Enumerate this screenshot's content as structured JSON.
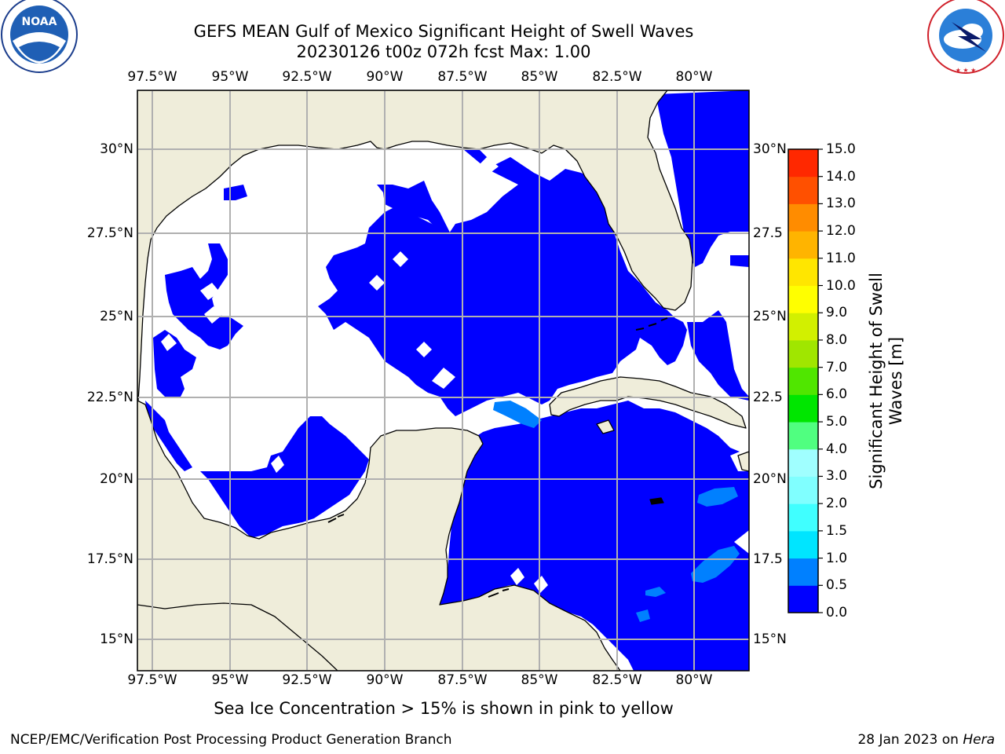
{
  "title_line1": "GEFS MEAN Gulf of Mexico Significant Height of Swell Waves",
  "title_line2": "20230126 t00z 072h fcst   Max: 1.00",
  "lon_labels": [
    "97.5°W",
    "95°W",
    "92.5°W",
    "90°W",
    "87.5°W",
    "85°W",
    "82.5°W",
    "80°W"
  ],
  "lat_labels": [
    "30°N",
    "27.5°N",
    "25°N",
    "22.5°N",
    "20°N",
    "17.5°N",
    "15°N"
  ],
  "lat_labels_right": [
    "30°N",
    "27.5",
    "25°N",
    "22.5",
    "20°N",
    "17.5",
    "15°N"
  ],
  "colorbar": {
    "title_line1": "Significant Height of Swell",
    "title_line2": "Waves [m]",
    "ticks": [
      "0.0",
      "0.5",
      "1.0",
      "1.5",
      "2.0",
      "3.0",
      "4.0",
      "5.0",
      "6.0",
      "7.0",
      "8.0",
      "9.0",
      "10.0",
      "11.0",
      "12.0",
      "13.0",
      "14.0",
      "15.0"
    ],
    "colors": [
      "#0000ff",
      "#0080ff",
      "#00e5ff",
      "#40ffff",
      "#80ffff",
      "#a0ffff",
      "#50ff80",
      "#00e600",
      "#50e600",
      "#a0e600",
      "#d2f000",
      "#ffff00",
      "#ffe600",
      "#ffb400",
      "#ff8c00",
      "#ff5000",
      "#ff2800",
      "#ff0000"
    ]
  },
  "map_colors": {
    "land": "#efedda",
    "ocean_low": "#ffffff",
    "swell_0_0_5": "#0000ff",
    "swell_0_5_1": "#0080ff"
  },
  "footer_note": "Sea Ice Concentration > 15% is shown in pink to yellow",
  "credit_left": "NCEP/EMC/Verification Post Processing Product Generation Branch",
  "credit_date": "28 Jan 2023 on",
  "credit_machine": "Hera",
  "logo_left_text": "NOAA",
  "logo_left_ring": "NATIONAL OCEANIC AND ATMOSPHERIC ADMINISTRATION · U.S. DEPARTMENT OF COMMERCE",
  "logo_right_ring": "NATIONAL WEATHER SERVICE"
}
